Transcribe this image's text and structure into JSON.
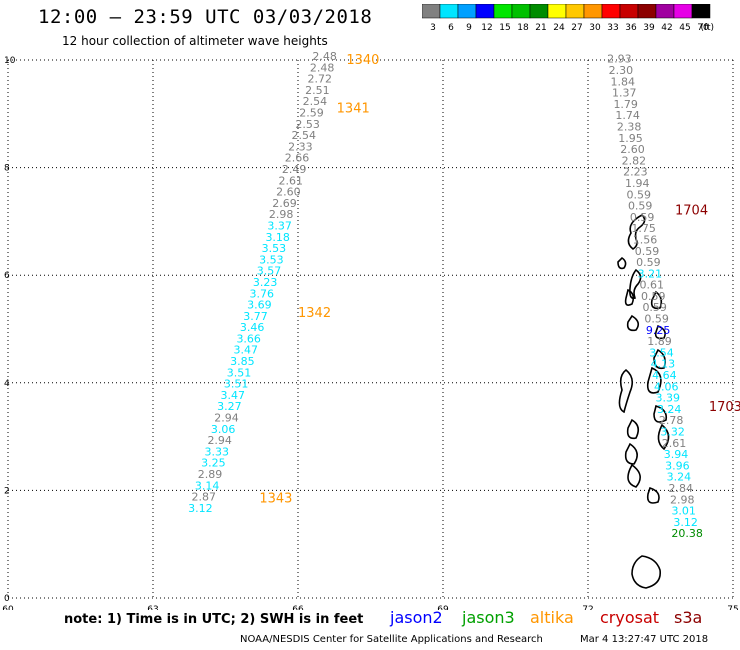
{
  "header": {
    "title": "12:00 – 23:59 UTC 03/03/2018",
    "subtitle": "12 hour collection of altimeter wave heights"
  },
  "color_legend": {
    "unit": "(ft)",
    "bins": [
      {
        "label": "3",
        "color": "#808080"
      },
      {
        "label": "6",
        "color": "#00e5ff"
      },
      {
        "label": "9",
        "color": "#00a0ff"
      },
      {
        "label": "12",
        "color": "#0000ff"
      },
      {
        "label": "15",
        "color": "#00e600"
      },
      {
        "label": "18",
        "color": "#00c000"
      },
      {
        "label": "21",
        "color": "#008c00"
      },
      {
        "label": "24",
        "color": "#ffff00"
      },
      {
        "label": "27",
        "color": "#ffc800"
      },
      {
        "label": "30",
        "color": "#ff9600"
      },
      {
        "label": "33",
        "color": "#ff0000"
      },
      {
        "label": "36",
        "color": "#c80000"
      },
      {
        "label": "39",
        "color": "#8c0000"
      },
      {
        "label": "42",
        "color": "#a000a0"
      },
      {
        "label": "45",
        "color": "#e600e6"
      },
      {
        "label": "70",
        "color": "#000000"
      }
    ]
  },
  "footer": {
    "note": "note:  1) Time is in UTC; 2) SWH is in feet",
    "satellites": [
      {
        "name": "jason2",
        "color": "#0000ff"
      },
      {
        "name": "jason3",
        "color": "#00a000"
      },
      {
        "name": "altika",
        "color": "#ff9600"
      },
      {
        "name": "cryosat",
        "color": "#c80000"
      },
      {
        "name": "s3a",
        "color": "#8c0000"
      }
    ],
    "credit": "NOAA/NESDIS Center for Satellite Applications and Research",
    "timestamp": "Mar  4 13:27:47 UTC 2018"
  },
  "chart_data": {
    "type": "scatter",
    "xlim": [
      60,
      75
    ],
    "ylim": [
      0,
      10
    ],
    "x_ticks": [
      "60",
      "63",
      "66",
      "69",
      "72",
      "75"
    ],
    "y_ticks": [
      "0",
      "2",
      "4",
      "6",
      "8",
      "10"
    ],
    "grid": true,
    "track_labels": [
      {
        "text": "1340",
        "x": 67.0,
        "y": 10.0,
        "color": "#ff9600"
      },
      {
        "text": "1341",
        "x": 66.8,
        "y": 9.1,
        "color": "#ff9600"
      },
      {
        "text": "1342",
        "x": 66.0,
        "y": 5.3,
        "color": "#ff9600"
      },
      {
        "text": "1343",
        "x": 65.2,
        "y": 1.85,
        "color": "#ff9600"
      },
      {
        "text": "1704",
        "x": 73.8,
        "y": 7.2,
        "color": "#8c0000"
      },
      {
        "text": "1703",
        "x": 74.5,
        "y": 3.55,
        "color": "#8c0000"
      }
    ],
    "series": [
      {
        "name": "altika",
        "points": [
          {
            "x": 66.55,
            "y": 10.0,
            "v": "2.48",
            "color": "#808080"
          },
          {
            "x": 66.5,
            "y": 9.79,
            "v": "2.48",
            "color": "#808080"
          },
          {
            "x": 66.45,
            "y": 9.58,
            "v": "2.72",
            "color": "#808080"
          },
          {
            "x": 66.4,
            "y": 9.37,
            "v": "2.51",
            "color": "#808080"
          },
          {
            "x": 66.35,
            "y": 9.16,
            "v": "2.54",
            "color": "#808080"
          },
          {
            "x": 66.28,
            "y": 8.95,
            "v": "2.59",
            "color": "#808080"
          },
          {
            "x": 66.2,
            "y": 8.74,
            "v": "2.53",
            "color": "#808080"
          },
          {
            "x": 66.12,
            "y": 8.53,
            "v": "2.54",
            "color": "#808080"
          },
          {
            "x": 66.05,
            "y": 8.32,
            "v": "2.33",
            "color": "#808080"
          },
          {
            "x": 65.98,
            "y": 8.11,
            "v": "2.66",
            "color": "#808080"
          },
          {
            "x": 65.92,
            "y": 7.9,
            "v": "2.49",
            "color": "#808080"
          },
          {
            "x": 65.85,
            "y": 7.69,
            "v": "2.61",
            "color": "#808080"
          },
          {
            "x": 65.8,
            "y": 7.48,
            "v": "2.60",
            "color": "#808080"
          },
          {
            "x": 65.72,
            "y": 7.27,
            "v": "2.69",
            "color": "#808080"
          },
          {
            "x": 65.65,
            "y": 7.06,
            "v": "2.98",
            "color": "#808080"
          },
          {
            "x": 65.62,
            "y": 6.85,
            "v": "3.37",
            "color": "#00e5ff"
          },
          {
            "x": 65.58,
            "y": 6.64,
            "v": "3.18",
            "color": "#00e5ff"
          },
          {
            "x": 65.5,
            "y": 6.43,
            "v": "3.53",
            "color": "#00e5ff"
          },
          {
            "x": 65.45,
            "y": 6.22,
            "v": "3.53",
            "color": "#00e5ff"
          },
          {
            "x": 65.4,
            "y": 6.01,
            "v": "3.57",
            "color": "#00e5ff"
          },
          {
            "x": 65.32,
            "y": 5.8,
            "v": "3.23",
            "color": "#00e5ff"
          },
          {
            "x": 65.25,
            "y": 5.59,
            "v": "3.76",
            "color": "#00e5ff"
          },
          {
            "x": 65.2,
            "y": 5.38,
            "v": "3.69",
            "color": "#00e5ff"
          },
          {
            "x": 65.12,
            "y": 5.17,
            "v": "3.77",
            "color": "#00e5ff"
          },
          {
            "x": 65.05,
            "y": 4.96,
            "v": "3.46",
            "color": "#00e5ff"
          },
          {
            "x": 64.98,
            "y": 4.75,
            "v": "3.66",
            "color": "#00e5ff"
          },
          {
            "x": 64.92,
            "y": 4.54,
            "v": "3.47",
            "color": "#00e5ff"
          },
          {
            "x": 64.85,
            "y": 4.33,
            "v": "3.85",
            "color": "#00e5ff"
          },
          {
            "x": 64.78,
            "y": 4.12,
            "v": "3.51",
            "color": "#00e5ff"
          },
          {
            "x": 64.72,
            "y": 3.91,
            "v": "3.51",
            "color": "#00e5ff"
          },
          {
            "x": 64.65,
            "y": 3.7,
            "v": "3.47",
            "color": "#00e5ff"
          },
          {
            "x": 64.58,
            "y": 3.49,
            "v": "3.27",
            "color": "#00e5ff"
          },
          {
            "x": 64.52,
            "y": 3.28,
            "v": "2.94",
            "color": "#808080"
          },
          {
            "x": 64.45,
            "y": 3.07,
            "v": "3.06",
            "color": "#00e5ff"
          },
          {
            "x": 64.38,
            "y": 2.86,
            "v": "2.94",
            "color": "#808080"
          },
          {
            "x": 64.32,
            "y": 2.65,
            "v": "3.33",
            "color": "#00e5ff"
          },
          {
            "x": 64.25,
            "y": 2.44,
            "v": "3.25",
            "color": "#00e5ff"
          },
          {
            "x": 64.18,
            "y": 2.23,
            "v": "2.89",
            "color": "#808080"
          },
          {
            "x": 64.12,
            "y": 2.02,
            "v": "3.14",
            "color": "#00e5ff"
          },
          {
            "x": 64.05,
            "y": 1.81,
            "v": "2.87",
            "color": "#808080"
          },
          {
            "x": 63.98,
            "y": 1.6,
            "v": "3.12",
            "color": "#00e5ff"
          }
        ]
      },
      {
        "name": "s3a",
        "points": [
          {
            "x": 72.65,
            "y": 9.95,
            "v": "2.93",
            "color": "#808080"
          },
          {
            "x": 72.68,
            "y": 9.74,
            "v": "2.30",
            "color": "#808080"
          },
          {
            "x": 72.72,
            "y": 9.53,
            "v": "1.84",
            "color": "#808080"
          },
          {
            "x": 72.75,
            "y": 9.32,
            "v": "1.37",
            "color": "#808080"
          },
          {
            "x": 72.78,
            "y": 9.11,
            "v": "1.79",
            "color": "#808080"
          },
          {
            "x": 72.82,
            "y": 8.9,
            "v": "1.74",
            "color": "#808080"
          },
          {
            "x": 72.85,
            "y": 8.69,
            "v": "2.38",
            "color": "#808080"
          },
          {
            "x": 72.88,
            "y": 8.48,
            "v": "1.95",
            "color": "#808080"
          },
          {
            "x": 72.92,
            "y": 8.27,
            "v": "2.60",
            "color": "#808080"
          },
          {
            "x": 72.95,
            "y": 8.06,
            "v": "2.82",
            "color": "#808080"
          },
          {
            "x": 72.98,
            "y": 7.85,
            "v": "2.23",
            "color": "#808080"
          },
          {
            "x": 73.02,
            "y": 7.64,
            "v": "1.94",
            "color": "#808080"
          },
          {
            "x": 73.05,
            "y": 7.43,
            "v": "0.59",
            "color": "#808080"
          },
          {
            "x": 73.08,
            "y": 7.22,
            "v": "0.59",
            "color": "#808080"
          },
          {
            "x": 73.12,
            "y": 7.01,
            "v": "0.59",
            "color": "#808080"
          },
          {
            "x": 73.15,
            "y": 6.8,
            "v": "1.75",
            "color": "#808080"
          },
          {
            "x": 73.18,
            "y": 6.59,
            "v": "1.56",
            "color": "#808080"
          },
          {
            "x": 73.22,
            "y": 6.38,
            "v": "0.59",
            "color": "#808080"
          },
          {
            "x": 73.25,
            "y": 6.17,
            "v": "0.59",
            "color": "#808080"
          },
          {
            "x": 73.28,
            "y": 5.96,
            "v": "3.21",
            "color": "#00e5ff"
          },
          {
            "x": 73.32,
            "y": 5.75,
            "v": "0.61",
            "color": "#808080"
          },
          {
            "x": 73.35,
            "y": 5.54,
            "v": "0.59",
            "color": "#808080"
          },
          {
            "x": 73.38,
            "y": 5.33,
            "v": "0.59",
            "color": "#808080"
          },
          {
            "x": 73.42,
            "y": 5.12,
            "v": "0.59",
            "color": "#808080"
          },
          {
            "x": 73.45,
            "y": 4.91,
            "v": "9.25",
            "color": "#0000ff"
          },
          {
            "x": 73.48,
            "y": 4.7,
            "v": "1.89",
            "color": "#808080"
          },
          {
            "x": 73.52,
            "y": 4.49,
            "v": "3.54",
            "color": "#00e5ff"
          },
          {
            "x": 73.55,
            "y": 4.28,
            "v": "4.13",
            "color": "#00e5ff"
          },
          {
            "x": 73.58,
            "y": 4.07,
            "v": "4.64",
            "color": "#00e5ff"
          },
          {
            "x": 73.62,
            "y": 3.86,
            "v": "4.06",
            "color": "#00e5ff"
          },
          {
            "x": 73.65,
            "y": 3.65,
            "v": "3.39",
            "color": "#00e5ff"
          },
          {
            "x": 73.68,
            "y": 3.44,
            "v": "3.24",
            "color": "#00e5ff"
          },
          {
            "x": 73.72,
            "y": 3.23,
            "v": "2.78",
            "color": "#808080"
          },
          {
            "x": 73.75,
            "y": 3.02,
            "v": "3.32",
            "color": "#00e5ff"
          },
          {
            "x": 73.78,
            "y": 2.81,
            "v": "2.61",
            "color": "#808080"
          },
          {
            "x": 73.82,
            "y": 2.6,
            "v": "3.94",
            "color": "#00e5ff"
          },
          {
            "x": 73.85,
            "y": 2.39,
            "v": "3.96",
            "color": "#00e5ff"
          },
          {
            "x": 73.88,
            "y": 2.18,
            "v": "3.24",
            "color": "#00e5ff"
          },
          {
            "x": 73.92,
            "y": 1.97,
            "v": "2.84",
            "color": "#808080"
          },
          {
            "x": 73.95,
            "y": 1.76,
            "v": "2.98",
            "color": "#808080"
          },
          {
            "x": 73.98,
            "y": 1.55,
            "v": "3.01",
            "color": "#00e5ff"
          },
          {
            "x": 74.02,
            "y": 1.34,
            "v": "3.12",
            "color": "#00e5ff"
          },
          {
            "x": 74.05,
            "y": 1.13,
            "v": "20.38",
            "color": "#008c00"
          }
        ]
      }
    ]
  }
}
